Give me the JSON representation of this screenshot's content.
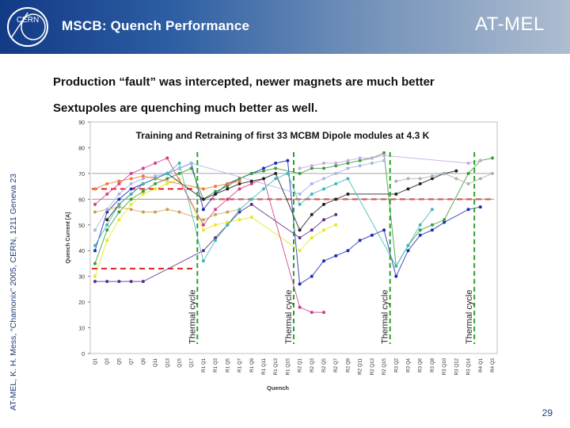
{
  "slide": {
    "header_title": "MSCB: Quench Performance",
    "header_right": "AT-MEL",
    "logo_text": "CERN",
    "side_text": "AT-MEL, K. H. Mess, “Chamonix” 2005, CERN, 1211 Geneva 23",
    "bullet1": "Production “fault” was intercepted, newer magnets are much better",
    "bullet2": "Sextupoles are quenching much better as well.",
    "page_number": "29"
  },
  "chart_data": {
    "type": "scatter",
    "title": "Training and Retraining of first 33 MCBM Dipole modules at 4.3 K",
    "xlabel": "Quench",
    "ylabel": "Quench Current [A]",
    "ylim": [
      0,
      90
    ],
    "yticks": [
      0,
      10,
      20,
      30,
      40,
      50,
      60,
      70,
      80,
      90
    ],
    "categories": [
      "Q1",
      "Q3",
      "Q5",
      "Q7",
      "Q9",
      "Q11",
      "Q13",
      "Q15",
      "Q17",
      "R1 Q1",
      "R1 Q3",
      "R1 Q5",
      "R1 Q7",
      "R1 Q9",
      "R1 Q11",
      "R1 Q13",
      "R1 Q15",
      "R2 Q1",
      "R2 Q3",
      "R2 Q5",
      "R2 Q7",
      "R2 Q9",
      "R2 Q11",
      "R2 Q13",
      "R2 Q15",
      "R3 Q2",
      "R3 Q4",
      "R3 Q6",
      "R3 Q8",
      "R3 Q10",
      "R3 Q12",
      "R3 Q14",
      "R4 Q1",
      "R4 Q3"
    ],
    "thermal_cycle_label": "Thermal cycle",
    "thermal_cycles_after": [
      "Q17",
      "R1 Q15",
      "R2 Q15",
      "R3 Q14"
    ],
    "reference_lines": [
      {
        "level": 33,
        "from": "Q1",
        "to": "Q17",
        "color": "#e02020",
        "style": "dashed"
      },
      {
        "level": 64,
        "from": "Q1",
        "to": "Q17",
        "color": "#e02020",
        "style": "dashed"
      },
      {
        "level": 60,
        "from": "R1 Q1",
        "to": "R4 Q3",
        "color": "#e02020",
        "style": "dashed"
      },
      {
        "level": 70,
        "from": "Q1",
        "to": "R4 Q3",
        "color": "#888888",
        "style": "solid"
      },
      {
        "level": 60,
        "from": "Q1",
        "to": "R4 Q3",
        "color": "#888888",
        "style": "solid"
      }
    ],
    "grid": false,
    "series": [
      {
        "color": "#1c2ab0",
        "points": [
          [
            0,
            40
          ],
          [
            1,
            55
          ],
          [
            2,
            60
          ],
          [
            3,
            64
          ],
          [
            4,
            66
          ],
          [
            5,
            68
          ],
          [
            6,
            70
          ],
          [
            7,
            72
          ],
          [
            8,
            74
          ],
          [
            9,
            56
          ],
          [
            10,
            62
          ],
          [
            11,
            66
          ],
          [
            12,
            68
          ],
          [
            13,
            70
          ],
          [
            14,
            72
          ],
          [
            15,
            74
          ],
          [
            16,
            75
          ],
          [
            17,
            27
          ],
          [
            18,
            30
          ],
          [
            19,
            36
          ],
          [
            20,
            38
          ],
          [
            21,
            40
          ],
          [
            22,
            44
          ],
          [
            23,
            46
          ],
          [
            24,
            48
          ],
          [
            25,
            30
          ],
          [
            26,
            40
          ],
          [
            27,
            46
          ],
          [
            28,
            48
          ],
          [
            29,
            51
          ],
          [
            31,
            56
          ],
          [
            32,
            57
          ]
        ]
      },
      {
        "color": "#3b9b3b",
        "points": [
          [
            0,
            35
          ],
          [
            1,
            48
          ],
          [
            2,
            55
          ],
          [
            3,
            60
          ],
          [
            4,
            63
          ],
          [
            5,
            66
          ],
          [
            6,
            68
          ],
          [
            7,
            70
          ],
          [
            8,
            72
          ],
          [
            9,
            60
          ],
          [
            10,
            63
          ],
          [
            11,
            65
          ],
          [
            12,
            68
          ],
          [
            13,
            70
          ],
          [
            14,
            71
          ],
          [
            15,
            72
          ],
          [
            17,
            70
          ],
          [
            18,
            72
          ],
          [
            19,
            72
          ],
          [
            20,
            73
          ],
          [
            21,
            74
          ],
          [
            22,
            75
          ],
          [
            23,
            76
          ],
          [
            24,
            78
          ],
          [
            25,
            34
          ],
          [
            26,
            42
          ],
          [
            27,
            48
          ],
          [
            28,
            50
          ],
          [
            29,
            52
          ],
          [
            31,
            70
          ],
          [
            32,
            75
          ],
          [
            33,
            76
          ]
        ]
      },
      {
        "color": "#e8e820",
        "points": [
          [
            0,
            30
          ],
          [
            1,
            44
          ],
          [
            2,
            52
          ],
          [
            3,
            58
          ],
          [
            4,
            62
          ],
          [
            5,
            64
          ],
          [
            6,
            66
          ],
          [
            7,
            68
          ],
          [
            9,
            48
          ],
          [
            10,
            50
          ],
          [
            11,
            51
          ],
          [
            12,
            52
          ],
          [
            13,
            53
          ],
          [
            17,
            40
          ],
          [
            18,
            45
          ],
          [
            19,
            48
          ],
          [
            20,
            50
          ]
        ]
      },
      {
        "color": "#d23c8a",
        "points": [
          [
            0,
            58
          ],
          [
            1,
            62
          ],
          [
            2,
            66
          ],
          [
            3,
            70
          ],
          [
            4,
            72
          ],
          [
            5,
            74
          ],
          [
            6,
            76
          ],
          [
            9,
            50
          ],
          [
            10,
            56
          ],
          [
            11,
            60
          ],
          [
            12,
            64
          ],
          [
            13,
            66
          ],
          [
            14,
            68
          ],
          [
            17,
            18
          ],
          [
            18,
            16
          ],
          [
            19,
            16
          ]
        ]
      },
      {
        "color": "#c8a050",
        "points": [
          [
            0,
            55
          ],
          [
            1,
            56
          ],
          [
            2,
            57
          ],
          [
            3,
            56
          ],
          [
            4,
            55
          ],
          [
            5,
            55
          ],
          [
            6,
            56
          ],
          [
            7,
            55
          ],
          [
            9,
            52
          ],
          [
            10,
            54
          ],
          [
            11,
            55
          ],
          [
            12,
            56
          ]
        ]
      },
      {
        "color": "#a8b4e8",
        "points": [
          [
            0,
            48
          ],
          [
            1,
            56
          ],
          [
            2,
            62
          ],
          [
            3,
            66
          ],
          [
            4,
            68
          ],
          [
            5,
            69
          ],
          [
            6,
            70
          ],
          [
            7,
            72
          ],
          [
            8,
            74
          ],
          [
            17,
            62
          ],
          [
            18,
            66
          ],
          [
            19,
            68
          ],
          [
            20,
            70
          ],
          [
            21,
            72
          ],
          [
            22,
            73
          ],
          [
            23,
            74
          ],
          [
            24,
            75
          ]
        ]
      },
      {
        "color": "#5a2e8a",
        "points": [
          [
            0,
            28
          ],
          [
            1,
            28
          ],
          [
            2,
            28
          ],
          [
            3,
            28
          ],
          [
            4,
            28
          ],
          [
            9,
            40
          ],
          [
            10,
            45
          ],
          [
            11,
            50
          ],
          [
            12,
            55
          ],
          [
            13,
            58
          ],
          [
            17,
            45
          ],
          [
            18,
            48
          ],
          [
            19,
            52
          ],
          [
            20,
            54
          ]
        ]
      },
      {
        "color": "#222222",
        "points": [
          [
            1,
            52
          ],
          [
            2,
            58
          ],
          [
            3,
            62
          ],
          [
            4,
            66
          ],
          [
            5,
            68
          ],
          [
            6,
            70
          ],
          [
            9,
            60
          ],
          [
            10,
            62
          ],
          [
            11,
            64
          ],
          [
            12,
            66
          ],
          [
            13,
            67
          ],
          [
            14,
            68
          ],
          [
            15,
            70
          ],
          [
            17,
            48
          ],
          [
            18,
            54
          ],
          [
            19,
            58
          ],
          [
            20,
            60
          ],
          [
            21,
            62
          ],
          [
            25,
            62
          ],
          [
            26,
            64
          ],
          [
            27,
            66
          ],
          [
            28,
            68
          ],
          [
            29,
            70
          ],
          [
            30,
            71
          ]
        ]
      },
      {
        "color": "#40b8b8",
        "points": [
          [
            0,
            42
          ],
          [
            1,
            50
          ],
          [
            2,
            58
          ],
          [
            3,
            62
          ],
          [
            4,
            66
          ],
          [
            5,
            68
          ],
          [
            6,
            70
          ],
          [
            7,
            74
          ],
          [
            9,
            36
          ],
          [
            10,
            44
          ],
          [
            11,
            50
          ],
          [
            12,
            56
          ],
          [
            13,
            60
          ],
          [
            14,
            64
          ],
          [
            15,
            68
          ],
          [
            16,
            70
          ],
          [
            17,
            58
          ],
          [
            18,
            62
          ],
          [
            19,
            64
          ],
          [
            20,
            66
          ],
          [
            21,
            68
          ],
          [
            25,
            34
          ],
          [
            26,
            42
          ],
          [
            27,
            50
          ],
          [
            28,
            56
          ]
        ]
      },
      {
        "color": "#f07830",
        "points": [
          [
            0,
            64
          ],
          [
            1,
            66
          ],
          [
            2,
            67
          ],
          [
            3,
            68
          ],
          [
            4,
            69
          ],
          [
            9,
            64
          ],
          [
            10,
            65
          ],
          [
            11,
            66
          ],
          [
            12,
            67
          ]
        ]
      },
      {
        "color": "#b0b0b0",
        "points": [
          [
            25,
            67
          ],
          [
            26,
            68
          ],
          [
            27,
            68
          ],
          [
            28,
            69
          ],
          [
            29,
            70
          ],
          [
            30,
            68
          ],
          [
            31,
            66
          ],
          [
            32,
            68
          ],
          [
            33,
            70
          ]
        ]
      },
      {
        "color": "#c8a8e0",
        "points": [
          [
            17,
            72
          ],
          [
            18,
            73
          ],
          [
            19,
            74
          ],
          [
            20,
            74
          ],
          [
            21,
            75
          ],
          [
            22,
            76
          ],
          [
            23,
            76
          ],
          [
            24,
            77
          ],
          [
            31,
            74
          ],
          [
            32,
            75
          ]
        ]
      }
    ]
  }
}
